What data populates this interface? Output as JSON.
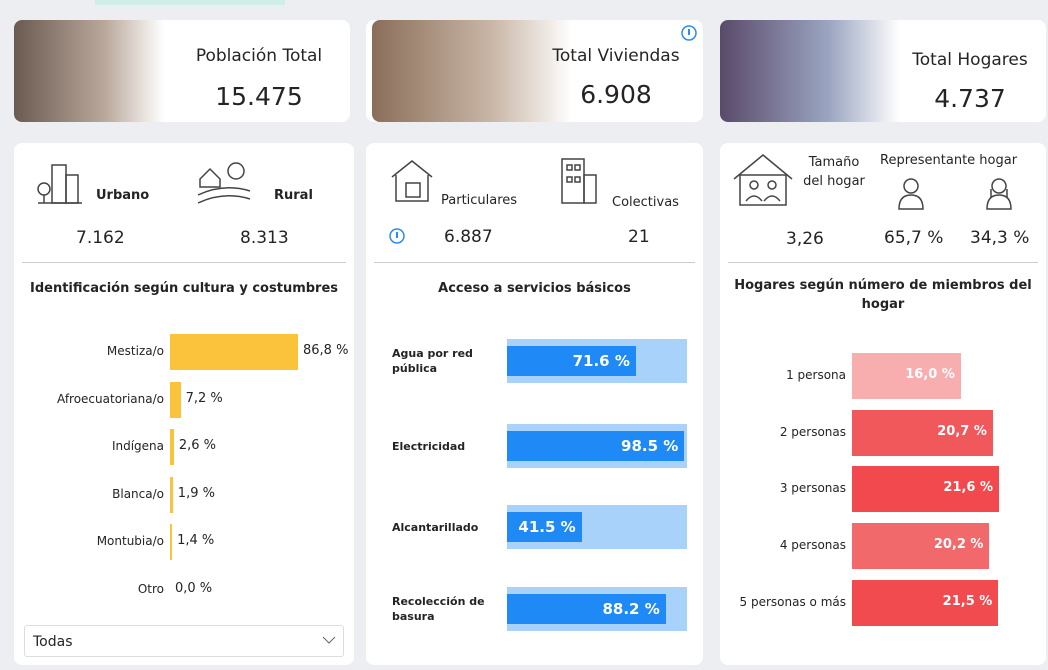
{
  "cards": [
    {
      "title": "Población Total",
      "value": "15.475"
    },
    {
      "title": "Total Viviendas",
      "value": "6.908"
    },
    {
      "title": "Total Hogares",
      "value": "4.737"
    }
  ],
  "panels": [
    {
      "stats": [
        {
          "label": "Urbano",
          "value": "7.162"
        },
        {
          "label": "Rural",
          "value": "8.313"
        }
      ],
      "chart": {
        "type": "bar",
        "title": "Identificación según cultura y costumbres",
        "categories": [
          "Mestiza/o",
          "Afroecuatoriana/o",
          "Indígena",
          "Blanca/o",
          "Montubia/o",
          "Otro"
        ],
        "values": [
          86.8,
          7.2,
          2.6,
          1.9,
          1.4,
          0.0
        ],
        "value_labels": [
          "86,8 %",
          "7,2 %",
          "2,6 %",
          "1,9 %",
          "1,4 %",
          "0,0 %"
        ],
        "color": "#fbc33b"
      },
      "dropdown": "Todas"
    },
    {
      "stats": [
        {
          "label": "Particulares",
          "value": "6.887"
        },
        {
          "label": "Colectivas",
          "value": "21"
        }
      ],
      "chart": {
        "type": "bar",
        "title": "Acceso a servicios básicos",
        "categories": [
          "Agua por red pública",
          "Electricidad",
          "Alcantarillado",
          "Recolección de basura"
        ],
        "values": [
          71.6,
          98.5,
          41.5,
          88.2
        ],
        "value_labels": [
          "71.6 %",
          "98.5 %",
          "41.5 %",
          "88.2 %"
        ],
        "color": "#1f8af5",
        "track_color": "#a9d2fb"
      }
    },
    {
      "stats": [
        {
          "label": "Tamaño del hogar",
          "value": "3,26"
        },
        {
          "label": "Representante hogar",
          "values": [
            "65,7 %",
            "34,3 %"
          ]
        }
      ],
      "chart": {
        "type": "bar",
        "title": "Hogares según número de miembros del hogar",
        "categories": [
          "1 persona",
          "2 personas",
          "3 personas",
          "4 personas",
          "5 personas o más"
        ],
        "values": [
          16.0,
          20.7,
          21.6,
          20.2,
          21.5
        ],
        "value_labels": [
          "16,0 %",
          "20,7 %",
          "21,6 %",
          "20,2 %",
          "21,5 %"
        ],
        "colors": [
          "#f8adaf",
          "#f1585c",
          "#f1494e",
          "#f2696c",
          "#f14b50"
        ]
      }
    }
  ]
}
